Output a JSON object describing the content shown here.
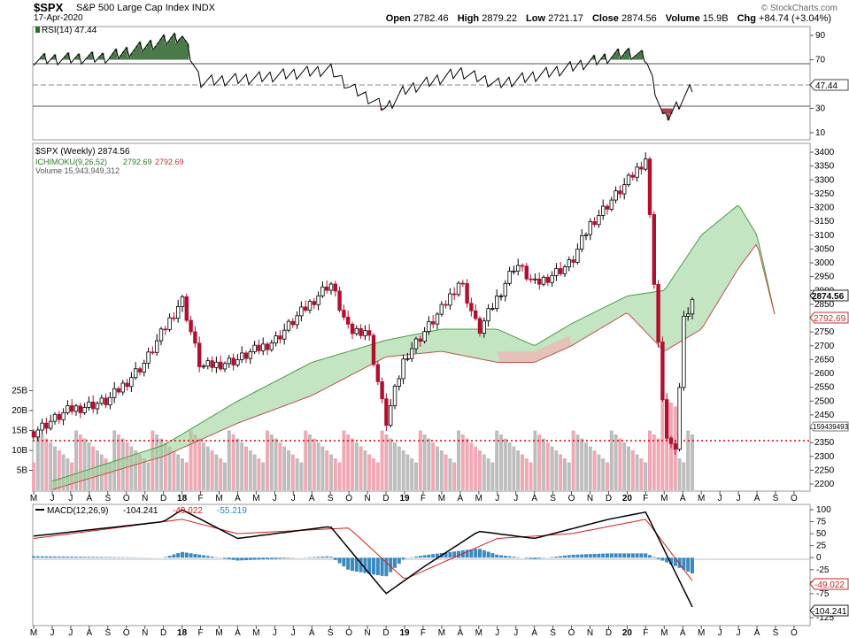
{
  "header": {
    "symbol": "$SPX",
    "name": "S&P 500 Large Cap Index",
    "exchange": "INDX",
    "date": "17-Apr-2020",
    "brand": "© StockCharts.com",
    "open_label": "Open",
    "open": "2782.46",
    "high_label": "High",
    "high": "2879.22",
    "low_label": "Low",
    "low": "2721.17",
    "close_label": "Close",
    "close": "2874.56",
    "volume_label": "Volume",
    "volume": "15.9B",
    "chg_label": "Chg",
    "chg": "+84.74 (+3.04%)"
  },
  "rsi_panel": {
    "legend": "RSI(14) 47.44",
    "ticks": [
      "90",
      "70",
      "30",
      "10"
    ],
    "current": "47.44"
  },
  "price_panel": {
    "legend_price": "$SPX (Weekly) 2874.56",
    "legend_ichimoku_label": "ICHIMOKU(9,26,52)",
    "legend_ichimoku_v1": "2792.69",
    "legend_ichimoku_v2": "2792.69",
    "legend_volume": "Volume 15,943,949,312",
    "price_ticks": [
      "3400",
      "3350",
      "3300",
      "3250",
      "3200",
      "3150",
      "3100",
      "3050",
      "3000",
      "2950",
      "2900",
      "2850",
      "2800",
      "2750",
      "2700",
      "2650",
      "2600",
      "2550",
      "2500",
      "2450",
      "2400",
      "2350",
      "2300",
      "2250",
      "2200"
    ],
    "volume_ticks": [
      "25B",
      "20B",
      "15B",
      "10B",
      "5B"
    ],
    "price_badge": "2874.56",
    "ichimoku_badge": "2792.69",
    "volume_badge": "15943949312"
  },
  "macd_panel": {
    "legend_label": "MACD(12,26,9)",
    "legend_v1": "-104.241",
    "legend_v2": "-49.022",
    "legend_v3": "-55.219",
    "ticks": [
      "100",
      "75",
      "50",
      "25",
      "0",
      "-25",
      "-50",
      "-75",
      "-125"
    ],
    "badge_signal": "-49.022",
    "badge_macd": "-104.241"
  },
  "time_axis": {
    "labels": [
      "M",
      "J",
      "J",
      "A",
      "S",
      "O",
      "N",
      "D",
      "18",
      "F",
      "M",
      "A",
      "M",
      "J",
      "J",
      "A",
      "S",
      "O",
      "N",
      "D",
      "19",
      "F",
      "M",
      "A",
      "M",
      "J",
      "J",
      "A",
      "S",
      "O",
      "N",
      "D",
      "20",
      "F",
      "M",
      "A",
      "M",
      "J",
      "J",
      "A",
      "S",
      "O"
    ]
  },
  "chart_data": {
    "type": "candlestick",
    "title": "$SPX (Weekly)",
    "x_start": "2017-05",
    "x_end": "2020-10",
    "price_ylim": [
      2180,
      3420
    ],
    "volume_ylim_billions": [
      0,
      30
    ],
    "rsi_ylim": [
      0,
      100
    ],
    "macd_ylim": [
      -140,
      110
    ],
    "reference_price_line": 2340,
    "close_path": [
      [
        "2017-05",
        2390
      ],
      [
        "2017-07",
        2470
      ],
      [
        "2017-09",
        2500
      ],
      [
        "2017-11",
        2640
      ],
      [
        "2018-01",
        2870
      ],
      [
        "2018-02",
        2620
      ],
      [
        "2018-04",
        2650
      ],
      [
        "2018-06",
        2720
      ],
      [
        "2018-08",
        2860
      ],
      [
        "2018-09",
        2930
      ],
      [
        "2018-10",
        2750
      ],
      [
        "2018-11",
        2760
      ],
      [
        "2018-12",
        2420
      ],
      [
        "2019-01",
        2660
      ],
      [
        "2019-03",
        2830
      ],
      [
        "2019-04",
        2940
      ],
      [
        "2019-05",
        2750
      ],
      [
        "2019-07",
        3000
      ],
      [
        "2019-08",
        2920
      ],
      [
        "2019-10",
        3000
      ],
      [
        "2019-11",
        3140
      ],
      [
        "2020-01",
        3290
      ],
      [
        "2020-02",
        3380
      ],
      [
        "2020-03",
        2400
      ],
      [
        "2020-03-20",
        2300
      ],
      [
        "2020-04",
        2790
      ],
      [
        "2020-04-17",
        2874.56
      ]
    ],
    "ichimoku_cloud_edges": [
      [
        "2017-06",
        2180,
        2210
      ],
      [
        "2017-12",
        2300,
        2340
      ],
      [
        "2018-04",
        2420,
        2500
      ],
      [
        "2018-08",
        2520,
        2640
      ],
      [
        "2018-12",
        2660,
        2720
      ],
      [
        "2019-03",
        2680,
        2760
      ],
      [
        "2019-06",
        2640,
        2760
      ],
      [
        "2019-08",
        2640,
        2700
      ],
      [
        "2019-10",
        2700,
        2780
      ],
      [
        "2020-01",
        2820,
        2880
      ],
      [
        "2020-03",
        2680,
        2900
      ],
      [
        "2020-05",
        2760,
        3100
      ],
      [
        "2020-07",
        2980,
        3210
      ],
      [
        "2020-08",
        3070,
        3100
      ],
      [
        "2020-09",
        2800,
        2800
      ]
    ],
    "rsi_values": [
      [
        "2017-05",
        70
      ],
      [
        "2017-09",
        72
      ],
      [
        "2018-01",
        90
      ],
      [
        "2018-02",
        52
      ],
      [
        "2018-05",
        55
      ],
      [
        "2018-09",
        62
      ],
      [
        "2018-10",
        48
      ],
      [
        "2018-12",
        30
      ],
      [
        "2019-01",
        45
      ],
      [
        "2019-04",
        60
      ],
      [
        "2019-06",
        50
      ],
      [
        "2019-09",
        60
      ],
      [
        "2020-01",
        76
      ],
      [
        "2020-02",
        72
      ],
      [
        "2020-03",
        20
      ],
      [
        "2020-04-17",
        47.44
      ]
    ],
    "macd_values": [
      [
        "2017-05",
        45
      ],
      [
        "2017-12",
        75
      ],
      [
        "2018-01",
        100
      ],
      [
        "2018-04",
        40
      ],
      [
        "2018-09",
        65
      ],
      [
        "2018-12",
        -75
      ],
      [
        "2019-02",
        -20
      ],
      [
        "2019-05",
        55
      ],
      [
        "2019-08",
        40
      ],
      [
        "2019-12",
        80
      ],
      [
        "2020-02",
        95
      ],
      [
        "2020-04-17",
        -104.241
      ]
    ],
    "signal_values": [
      [
        "2017-05",
        40
      ],
      [
        "2018-01",
        80
      ],
      [
        "2018-04",
        50
      ],
      [
        "2018-10",
        62
      ],
      [
        "2019-01",
        -45
      ],
      [
        "2019-06",
        40
      ],
      [
        "2019-10",
        50
      ],
      [
        "2020-02",
        80
      ],
      [
        "2020-04-17",
        -49.022
      ]
    ],
    "histogram_last": -55.219
  }
}
